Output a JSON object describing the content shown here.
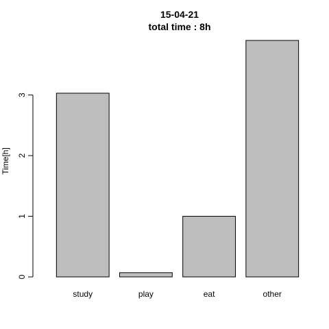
{
  "chart_data": {
    "type": "bar",
    "title_line1": "15-04-21",
    "title_line2": "total time : 8h",
    "xlabel": "",
    "ylabel": "Time[h]",
    "categories": [
      "study",
      "play",
      "eat",
      "other"
    ],
    "values": [
      3.03,
      0.07,
      1.0,
      3.9
    ],
    "ylim": [
      0,
      3.9
    ],
    "yticks": [
      "0",
      "1",
      "2",
      "3"
    ],
    "grid": false,
    "bar_color": "#bebebe",
    "edge_color": "#000000"
  }
}
